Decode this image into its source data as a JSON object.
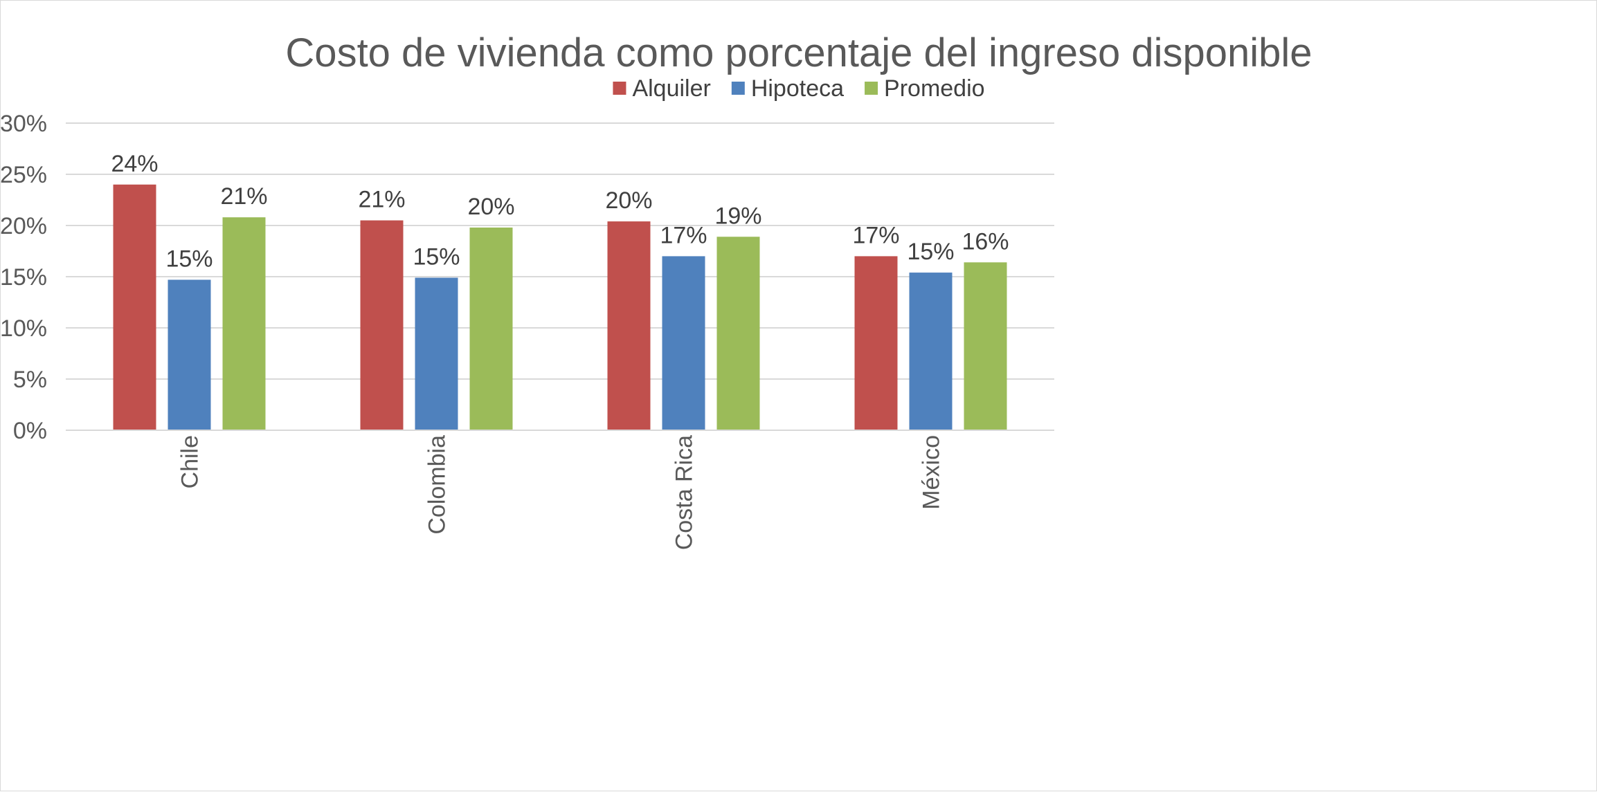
{
  "chart_data": {
    "type": "bar",
    "title": "Costo de vivienda como porcentaje del ingreso disponible",
    "xlabel": "",
    "ylabel": "",
    "categories": [
      "Chile",
      "Colombia",
      "Costa Rica",
      "México"
    ],
    "series": [
      {
        "name": "Alquiler",
        "color": "#c0504d",
        "values": [
          0.24,
          0.205,
          0.204,
          0.17
        ],
        "labels": [
          "24%",
          "21%",
          "20%",
          "17%"
        ]
      },
      {
        "name": "Hipoteca",
        "color": "#4f81bd",
        "values": [
          0.147,
          0.149,
          0.17,
          0.154
        ],
        "labels": [
          "15%",
          "15%",
          "17%",
          "15%"
        ]
      },
      {
        "name": "Promedio",
        "color": "#9bbb59",
        "values": [
          0.208,
          0.198,
          0.189,
          0.164
        ],
        "labels": [
          "21%",
          "20%",
          "19%",
          "16%"
        ]
      }
    ],
    "ylim": [
      0,
      0.3
    ],
    "yticks": [
      0,
      0.05,
      0.1,
      0.15,
      0.2,
      0.25,
      0.3
    ],
    "ytick_labels": [
      "0%",
      "5%",
      "10%",
      "15%",
      "20%",
      "25%",
      "30%"
    ],
    "legend_position": "top",
    "grid": true,
    "colors": {
      "gridline": "#d9d9d9",
      "axis": "#d9d9d9"
    }
  }
}
